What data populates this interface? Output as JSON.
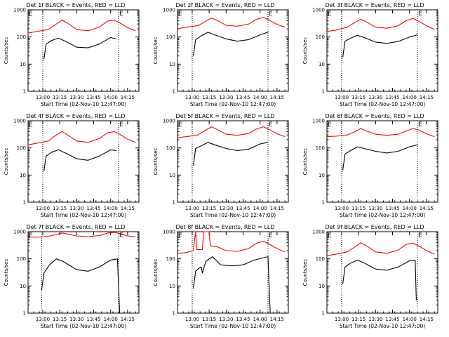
{
  "figure": {
    "panels": [
      {
        "title": "Det 1f BLACK = Events, RED = LLD"
      },
      {
        "title": "Det 2f BLACK = Events, RED = LLD"
      },
      {
        "title": "Det 3f BLACK = Events, RED = LLD"
      },
      {
        "title": "Det 4f BLACK = Events, RED = LLD"
      },
      {
        "title": "Det 5f BLACK = Events, RED = LLD"
      },
      {
        "title": "Det 6f BLACK = Events, RED = LLD"
      },
      {
        "title": "Det 7f BLACK = Events, RED = LLD"
      },
      {
        "title": "Det 8f BLACK = Events, RED = LLD"
      },
      {
        "title": "Det 9f BLACK = Events, RED = LLD"
      }
    ],
    "xlabel": "Start Time (02-Nov-10 12:47:00)",
    "ylabel": "Counts/sec",
    "xticks": [
      "13:00",
      "13:15",
      "13:30",
      "13:45",
      "14:00",
      "14:15"
    ],
    "yticks": [
      "1",
      "10",
      "100",
      "1000"
    ],
    "corner_marker": "E",
    "colors": {
      "events": "#000000",
      "lld": "#ff0000",
      "axes": "#000000"
    }
  },
  "chart_data": [
    {
      "type": "line",
      "title": "Det 1f BLACK = Events, RED = LLD",
      "xlabel": "Start Time (02-Nov-10 12:47:00)",
      "ylabel": "Counts/sec",
      "y_scale": "log",
      "ylim": [
        1,
        1000
      ],
      "xlim": [
        "12:47",
        "14:25"
      ],
      "grid": false,
      "vlines": [
        "13:00",
        "14:07"
      ],
      "series": [
        {
          "color": "red",
          "x": [
            "12:47",
            "12:55",
            "13:05",
            "13:12",
            "13:17",
            "13:22",
            "13:30",
            "13:40",
            "13:50",
            "13:57",
            "14:03",
            "14:08",
            "14:15",
            "14:22"
          ],
          "values": [
            140,
            160,
            190,
            300,
            420,
            320,
            190,
            170,
            230,
            380,
            420,
            330,
            220,
            170
          ]
        },
        {
          "color": "black",
          "x": [
            "13:01",
            "13:03",
            "13:08",
            "13:14",
            "13:20",
            "13:30",
            "13:40",
            "13:50",
            "14:00",
            "14:05"
          ],
          "values": [
            15,
            55,
            75,
            90,
            70,
            42,
            40,
            55,
            95,
            85
          ]
        }
      ]
    },
    {
      "type": "line",
      "title": "Det 2f BLACK = Events, RED = LLD",
      "xlabel": "Start Time (02-Nov-10 12:47:00)",
      "ylabel": "Counts/sec",
      "y_scale": "log",
      "ylim": [
        1,
        1000
      ],
      "xlim": [
        "12:47",
        "14:25"
      ],
      "grid": false,
      "vlines": [
        "13:00",
        "14:07"
      ],
      "series": [
        {
          "color": "red",
          "x": [
            "12:47",
            "12:55",
            "13:05",
            "13:12",
            "13:17",
            "13:22",
            "13:30",
            "13:40",
            "13:50",
            "13:57",
            "14:03",
            "14:08",
            "14:15",
            "14:22"
          ],
          "values": [
            200,
            230,
            260,
            380,
            500,
            410,
            270,
            250,
            300,
            450,
            520,
            420,
            290,
            230
          ]
        },
        {
          "color": "black",
          "x": [
            "13:01",
            "13:03",
            "13:08",
            "13:14",
            "13:20",
            "13:30",
            "13:40",
            "13:50",
            "14:00",
            "14:07"
          ],
          "values": [
            20,
            80,
            110,
            150,
            120,
            85,
            70,
            80,
            120,
            150
          ]
        }
      ]
    },
    {
      "type": "line",
      "title": "Det 3f BLACK = Events, RED = LLD",
      "xlabel": "Start Time (02-Nov-10 12:47:00)",
      "ylabel": "Counts/sec",
      "y_scale": "log",
      "ylim": [
        1,
        1000
      ],
      "xlim": [
        "12:47",
        "14:25"
      ],
      "grid": false,
      "vlines": [
        "13:00",
        "14:07"
      ],
      "series": [
        {
          "color": "red",
          "x": [
            "12:47",
            "12:55",
            "13:05",
            "13:12",
            "13:17",
            "13:22",
            "13:30",
            "13:40",
            "13:50",
            "13:57",
            "14:03",
            "14:08",
            "14:15",
            "14:22"
          ],
          "values": [
            160,
            180,
            230,
            350,
            450,
            360,
            230,
            210,
            260,
            400,
            480,
            380,
            260,
            190
          ]
        },
        {
          "color": "black",
          "x": [
            "13:01",
            "13:03",
            "13:08",
            "13:14",
            "13:20",
            "13:30",
            "13:40",
            "13:50",
            "14:00",
            "14:07"
          ],
          "values": [
            18,
            70,
            90,
            115,
            95,
            65,
            58,
            68,
            100,
            120
          ]
        }
      ]
    },
    {
      "type": "line",
      "title": "Det 4f BLACK = Events, RED = LLD",
      "xlabel": "Start Time (02-Nov-10 12:47:00)",
      "ylabel": "Counts/sec",
      "y_scale": "log",
      "ylim": [
        1,
        1000
      ],
      "xlim": [
        "12:47",
        "14:25"
      ],
      "grid": false,
      "vlines": [
        "13:00",
        "14:07"
      ],
      "series": [
        {
          "color": "red",
          "x": [
            "12:47",
            "12:55",
            "13:05",
            "13:12",
            "13:17",
            "13:22",
            "13:30",
            "13:40",
            "13:50",
            "13:57",
            "14:03",
            "14:08",
            "14:15",
            "14:22"
          ],
          "values": [
            130,
            150,
            180,
            300,
            400,
            300,
            180,
            160,
            220,
            360,
            400,
            320,
            210,
            160
          ]
        },
        {
          "color": "black",
          "x": [
            "13:01",
            "13:03",
            "13:08",
            "13:14",
            "13:20",
            "13:30",
            "13:40",
            "13:50",
            "14:00",
            "14:05"
          ],
          "values": [
            14,
            50,
            70,
            85,
            65,
            40,
            35,
            50,
            85,
            80
          ]
        }
      ]
    },
    {
      "type": "line",
      "title": "Det 5f BLACK = Events, RED = LLD",
      "xlabel": "Start Time (02-Nov-10 12:47:00)",
      "ylabel": "Counts/sec",
      "y_scale": "log",
      "ylim": [
        1,
        1000
      ],
      "xlim": [
        "12:47",
        "14:25"
      ],
      "grid": false,
      "vlines": [
        "13:00",
        "14:07"
      ],
      "series": [
        {
          "color": "red",
          "x": [
            "12:47",
            "12:55",
            "13:05",
            "13:12",
            "13:17",
            "13:22",
            "13:30",
            "13:40",
            "13:50",
            "13:57",
            "14:03",
            "14:08",
            "14:15",
            "14:22"
          ],
          "values": [
            240,
            260,
            300,
            450,
            600,
            480,
            320,
            290,
            340,
            500,
            600,
            480,
            330,
            260
          ]
        },
        {
          "color": "black",
          "x": [
            "13:01",
            "13:03",
            "13:08",
            "13:14",
            "13:20",
            "13:30",
            "13:40",
            "13:50",
            "14:00",
            "14:07"
          ],
          "values": [
            22,
            95,
            120,
            160,
            130,
            95,
            80,
            90,
            140,
            160
          ]
        }
      ]
    },
    {
      "type": "line",
      "title": "Det 6f BLACK = Events, RED = LLD",
      "xlabel": "Start Time (02-Nov-10 12:47:00)",
      "ylabel": "Counts/sec",
      "y_scale": "log",
      "ylim": [
        1,
        1000
      ],
      "xlim": [
        "12:47",
        "14:25"
      ],
      "grid": false,
      "vlines": [
        "13:00",
        "14:07"
      ],
      "series": [
        {
          "color": "red",
          "x": [
            "12:47",
            "12:55",
            "13:05",
            "13:12",
            "13:17",
            "13:22",
            "13:30",
            "13:40",
            "13:50",
            "13:57",
            "14:03",
            "14:08",
            "14:15",
            "14:22"
          ],
          "values": [
            260,
            270,
            300,
            400,
            520,
            420,
            320,
            290,
            320,
            420,
            520,
            460,
            330,
            260
          ]
        },
        {
          "color": "black",
          "x": [
            "13:01",
            "13:03",
            "13:08",
            "13:14",
            "13:20",
            "13:30",
            "13:40",
            "13:50",
            "14:00",
            "14:07"
          ],
          "values": [
            15,
            60,
            80,
            110,
            95,
            75,
            65,
            75,
            110,
            130
          ]
        }
      ]
    },
    {
      "type": "line",
      "title": "Det 7f BLACK = Events, RED = LLD",
      "xlabel": "Start Time (02-Nov-10 12:47:00)",
      "ylabel": "Counts/sec",
      "y_scale": "log",
      "ylim": [
        1,
        1000
      ],
      "xlim": [
        "12:47",
        "14:25"
      ],
      "grid": false,
      "vlines": [
        "12:59",
        "14:07"
      ],
      "series": [
        {
          "color": "red",
          "x": [
            "12:47",
            "12:55",
            "13:05",
            "13:12",
            "13:17",
            "13:22",
            "13:30",
            "13:40",
            "13:50",
            "13:57",
            "14:03",
            "14:08",
            "14:15",
            "14:22"
          ],
          "values": [
            650,
            620,
            680,
            780,
            900,
            820,
            700,
            660,
            720,
            880,
            950,
            850,
            700,
            640
          ]
        },
        {
          "color": "black",
          "x": [
            "12:59",
            "13:01",
            "13:06",
            "13:12",
            "13:18",
            "13:30",
            "13:40",
            "13:50",
            "14:00",
            "14:06",
            "14:08"
          ],
          "values": [
            7,
            30,
            60,
            100,
            80,
            40,
            35,
            50,
            90,
            100,
            1
          ]
        }
      ]
    },
    {
      "type": "line",
      "title": "Det 8f BLACK = Events, RED = LLD",
      "xlabel": "Start Time (02-Nov-10 12:47:00)",
      "ylabel": "Counts/sec",
      "y_scale": "log",
      "ylim": [
        1,
        1000
      ],
      "xlim": [
        "12:47",
        "14:25"
      ],
      "grid": false,
      "vlines": [
        "13:00",
        "14:07"
      ],
      "series": [
        {
          "color": "red",
          "x": [
            "12:47",
            "12:55",
            "13:01",
            "13:03",
            "13:04",
            "13:09",
            "13:10",
            "13:15",
            "13:16",
            "13:22",
            "13:30",
            "13:40",
            "13:50",
            "13:57",
            "14:03",
            "14:08",
            "14:15",
            "14:22"
          ],
          "values": [
            160,
            170,
            200,
            1000,
            220,
            220,
            1000,
            1000,
            300,
            280,
            200,
            190,
            240,
            380,
            440,
            350,
            240,
            180
          ]
        },
        {
          "color": "black",
          "x": [
            "13:01",
            "13:03",
            "13:06",
            "13:08",
            "13:09",
            "13:12",
            "13:15",
            "13:18",
            "13:25",
            "13:35",
            "13:45",
            "13:55",
            "14:03",
            "14:07",
            "14:09"
          ],
          "values": [
            8,
            35,
            45,
            50,
            30,
            80,
            100,
            120,
            60,
            55,
            60,
            90,
            110,
            120,
            1
          ]
        }
      ]
    },
    {
      "type": "line",
      "title": "Det 9f BLACK = Events, RED = LLD",
      "xlabel": "Start Time (02-Nov-10 12:47:00)",
      "ylabel": "Counts/sec",
      "y_scale": "log",
      "ylim": [
        1,
        1000
      ],
      "xlim": [
        "12:47",
        "14:25"
      ],
      "grid": false,
      "vlines": [
        "13:00",
        "14:07"
      ],
      "series": [
        {
          "color": "red",
          "x": [
            "12:47",
            "12:55",
            "13:05",
            "13:12",
            "13:17",
            "13:22",
            "13:30",
            "13:40",
            "13:50",
            "13:57",
            "14:03",
            "14:08",
            "14:15",
            "14:22"
          ],
          "values": [
            130,
            150,
            180,
            280,
            390,
            300,
            180,
            160,
            210,
            340,
            380,
            300,
            200,
            150
          ]
        },
        {
          "color": "black",
          "x": [
            "13:01",
            "13:03",
            "13:08",
            "13:14",
            "13:20",
            "13:30",
            "13:40",
            "13:50",
            "14:00",
            "14:05",
            "14:06"
          ],
          "values": [
            12,
            50,
            70,
            90,
            70,
            42,
            38,
            50,
            85,
            90,
            3
          ]
        }
      ]
    }
  ]
}
